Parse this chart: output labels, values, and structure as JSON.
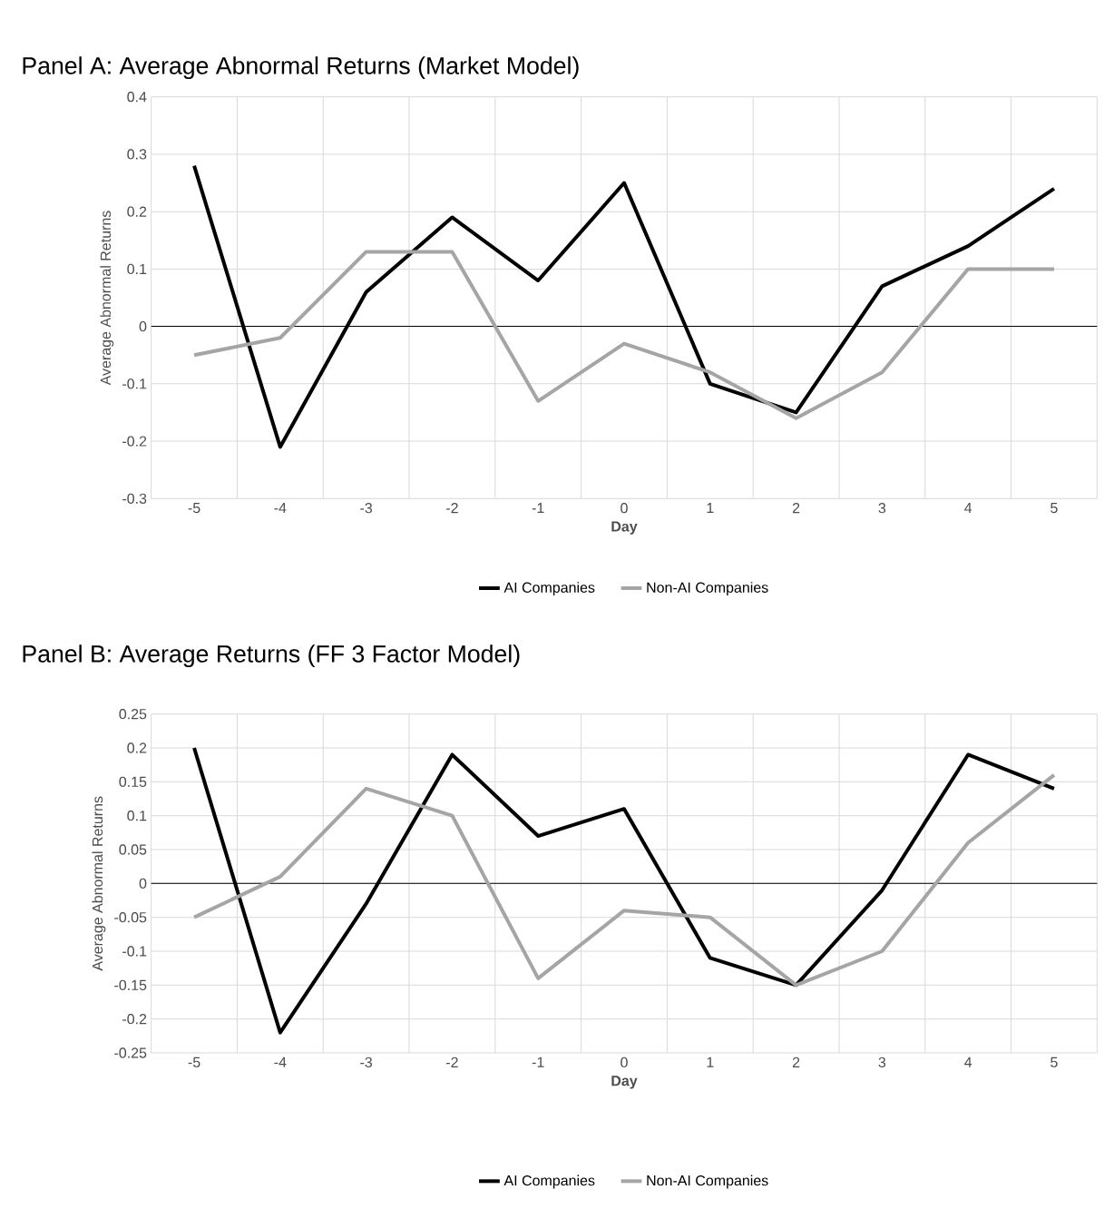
{
  "chart_data": [
    {
      "type": "line",
      "title": "Panel A: Average Abnormal Returns (Market Model)",
      "xlabel": "Day",
      "ylabel": "Average Abnormal Returns",
      "categories": [
        "-5",
        "-4",
        "-3",
        "-2",
        "-1",
        "0",
        "1",
        "2",
        "3",
        "4",
        "5"
      ],
      "series": [
        {
          "name": "AI Companies",
          "color": "#000000",
          "values": [
            0.28,
            -0.21,
            0.06,
            0.19,
            0.08,
            0.25,
            -0.1,
            -0.15,
            0.07,
            0.14,
            0.24
          ]
        },
        {
          "name": "Non-AI Companies",
          "color": "#a5a5a5",
          "values": [
            -0.05,
            -0.02,
            0.13,
            0.13,
            -0.13,
            -0.03,
            -0.08,
            -0.16,
            -0.08,
            0.1,
            0.1
          ]
        }
      ],
      "ylim": [
        -0.3,
        0.4
      ],
      "yticks": [
        -0.3,
        -0.2,
        -0.1,
        0,
        0.1,
        0.2,
        0.3,
        0.4
      ],
      "grid": true,
      "legend": "bottom",
      "marker": "none",
      "line_style": "solid"
    },
    {
      "type": "line",
      "title": "Panel B: Average Returns (FF 3 Factor Model)",
      "xlabel": "Day",
      "ylabel": "Average Abnormal Returns",
      "categories": [
        "-5",
        "-4",
        "-3",
        "-2",
        "-1",
        "0",
        "1",
        "2",
        "3",
        "4",
        "5"
      ],
      "series": [
        {
          "name": "AI Companies",
          "color": "#000000",
          "values": [
            0.2,
            -0.22,
            -0.03,
            0.19,
            0.07,
            0.11,
            -0.11,
            -0.15,
            -0.01,
            0.19,
            0.14
          ]
        },
        {
          "name": "Non-AI Companies",
          "color": "#a5a5a5",
          "values": [
            -0.05,
            0.01,
            0.14,
            0.1,
            -0.14,
            -0.04,
            -0.05,
            -0.15,
            -0.1,
            0.06,
            0.16
          ]
        }
      ],
      "ylim": [
        -0.25,
        0.25
      ],
      "yticks": [
        -0.25,
        -0.2,
        -0.15,
        -0.1,
        -0.05,
        0,
        0.05,
        0.1,
        0.15,
        0.2,
        0.25
      ],
      "grid": true,
      "legend": "bottom",
      "marker": "none",
      "line_style": "solid"
    }
  ]
}
